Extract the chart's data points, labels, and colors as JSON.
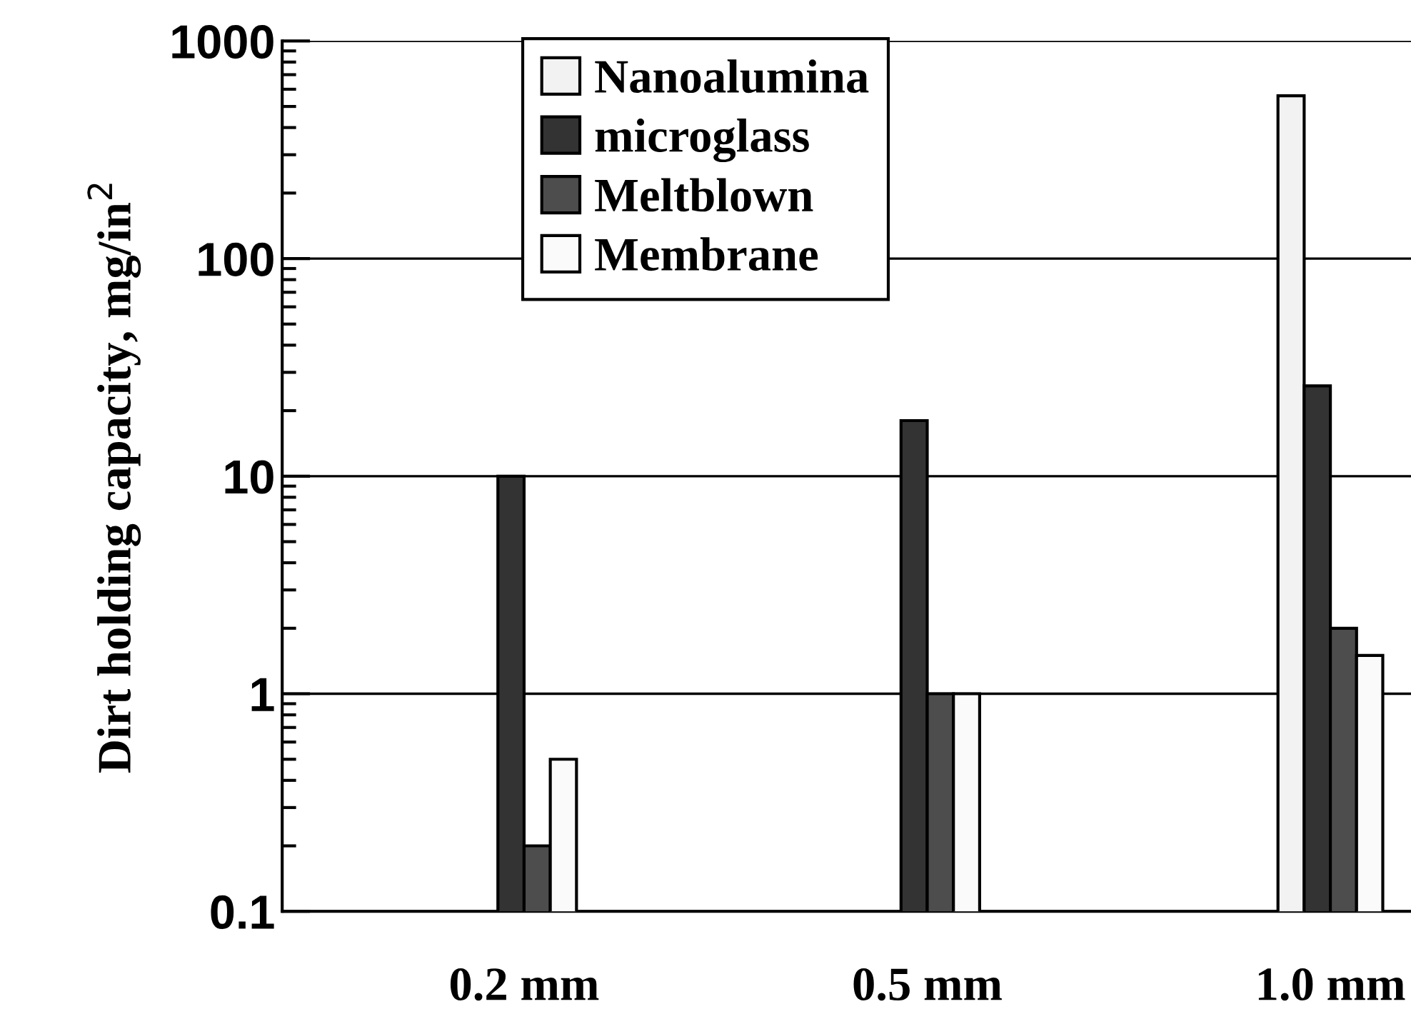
{
  "chart_data": {
    "type": "bar",
    "ylabel": "Dirt holding capacity, mg/in$^{2}$",
    "categories": [
      "0.2 mm",
      "0.5 mm",
      "1.0 mm"
    ],
    "series": [
      {
        "name": "Nanoalumina",
        "color": "#f2f2f2",
        "values": [
          null,
          null,
          560
        ]
      },
      {
        "name": "microglass",
        "color": "#333333",
        "values": [
          10,
          18,
          26
        ]
      },
      {
        "name": "Meltblown",
        "color": "#4d4d4d",
        "values": [
          0.2,
          1,
          2
        ]
      },
      {
        "name": "Membrane",
        "color": "#fafafa",
        "values": [
          0.5,
          1,
          1.5
        ]
      }
    ],
    "log": true,
    "ylim": [
      0.1,
      1000
    ],
    "yticks": [
      0.1,
      1,
      10,
      100,
      1000
    ],
    "grid": "y",
    "legend": "top"
  }
}
